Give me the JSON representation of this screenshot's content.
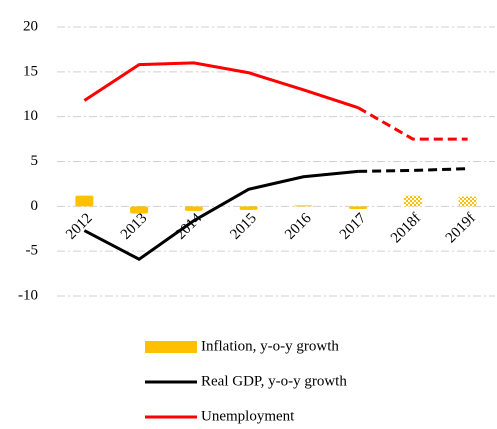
{
  "chart_data": {
    "type": "combo",
    "categories": [
      "2012",
      "2013",
      "2014",
      "2015",
      "2016",
      "2017",
      "2018f",
      "2019f"
    ],
    "forecast_from_index": 5,
    "series": [
      {
        "name": "Inflation, y-o-y growth",
        "type": "bar",
        "color": "#ffc000",
        "values": [
          1.2,
          -0.8,
          -0.5,
          -0.4,
          0.1,
          -0.3,
          1.2,
          1.1
        ]
      },
      {
        "name": "Real GDP, y-o-y growth",
        "type": "line",
        "color": "#000000",
        "values": [
          -2.7,
          -5.9,
          -1.6,
          1.9,
          3.3,
          3.9,
          4.0,
          4.2
        ]
      },
      {
        "name": "Unemployment",
        "type": "line",
        "color": "#ff0000",
        "values": [
          11.8,
          15.8,
          16.0,
          14.9,
          13.0,
          11.0,
          7.5,
          7.5
        ]
      }
    ],
    "ylim": [
      -10,
      20
    ],
    "yticks": [
      -10,
      -5,
      0,
      5,
      10,
      15,
      20
    ],
    "grid": true
  }
}
